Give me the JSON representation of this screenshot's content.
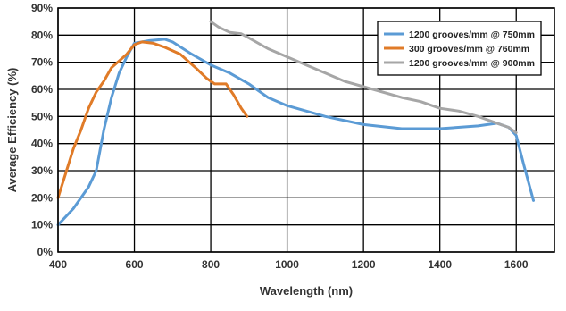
{
  "chart_data": {
    "type": "line",
    "xlabel": "Wavelength (nm)",
    "ylabel": "Average Efficiency (%)",
    "xlim": [
      400,
      1700
    ],
    "ylim": [
      0,
      90
    ],
    "x_ticks": [
      400,
      600,
      800,
      1000,
      1200,
      1400,
      1600
    ],
    "x_tick_labels": [
      "400",
      "600",
      "800",
      "1000",
      "1200",
      "1400",
      "1600"
    ],
    "y_ticks": [
      0,
      10,
      20,
      30,
      40,
      50,
      60,
      70,
      80,
      90
    ],
    "y_tick_labels": [
      "0%",
      "10%",
      "20%",
      "30%",
      "40%",
      "50%",
      "60%",
      "70%",
      "80%",
      "90%"
    ],
    "grid": true,
    "legend_position": "top-right",
    "series": [
      {
        "name": "1200 grooves/mm @ 750mm",
        "color": "#5b9bd5",
        "points": [
          [
            400,
            10
          ],
          [
            440,
            16
          ],
          [
            480,
            24
          ],
          [
            500,
            30
          ],
          [
            520,
            45
          ],
          [
            540,
            57
          ],
          [
            560,
            66
          ],
          [
            580,
            72
          ],
          [
            600,
            77
          ],
          [
            640,
            78
          ],
          [
            680,
            78.5
          ],
          [
            700,
            77.5
          ],
          [
            750,
            73
          ],
          [
            800,
            69
          ],
          [
            850,
            66
          ],
          [
            900,
            62
          ],
          [
            950,
            57
          ],
          [
            1000,
            54
          ],
          [
            1100,
            50
          ],
          [
            1200,
            47
          ],
          [
            1300,
            45.5
          ],
          [
            1400,
            45.5
          ],
          [
            1500,
            46.5
          ],
          [
            1550,
            47.5
          ],
          [
            1580,
            46
          ],
          [
            1600,
            43
          ],
          [
            1620,
            32
          ],
          [
            1645,
            19
          ]
        ]
      },
      {
        "name": "300 grooves/mm @ 760mm",
        "color": "#e07b28",
        "points": [
          [
            400,
            20
          ],
          [
            420,
            29
          ],
          [
            440,
            38
          ],
          [
            460,
            45
          ],
          [
            480,
            53
          ],
          [
            500,
            59
          ],
          [
            520,
            63
          ],
          [
            540,
            68
          ],
          [
            560,
            70.5
          ],
          [
            580,
            73
          ],
          [
            600,
            76.5
          ],
          [
            620,
            77.5
          ],
          [
            650,
            77
          ],
          [
            680,
            75.5
          ],
          [
            720,
            73
          ],
          [
            760,
            68
          ],
          [
            790,
            64
          ],
          [
            810,
            62
          ],
          [
            840,
            62
          ],
          [
            860,
            58
          ],
          [
            880,
            53
          ],
          [
            895,
            50
          ]
        ]
      },
      {
        "name": "1200 grooves/mm @ 900mm",
        "color": "#a6a6a6",
        "points": [
          [
            800,
            85
          ],
          [
            820,
            83
          ],
          [
            850,
            81
          ],
          [
            880,
            80.5
          ],
          [
            900,
            79
          ],
          [
            950,
            75
          ],
          [
            1000,
            72
          ],
          [
            1050,
            69
          ],
          [
            1100,
            66
          ],
          [
            1150,
            63
          ],
          [
            1200,
            61
          ],
          [
            1250,
            59
          ],
          [
            1300,
            57
          ],
          [
            1350,
            55.5
          ],
          [
            1400,
            53
          ],
          [
            1450,
            52
          ],
          [
            1500,
            50
          ],
          [
            1550,
            47.5
          ],
          [
            1580,
            46
          ],
          [
            1600,
            44
          ]
        ]
      }
    ]
  }
}
